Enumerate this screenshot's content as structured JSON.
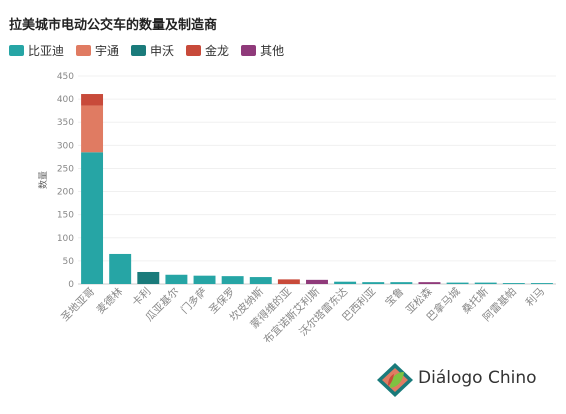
{
  "chart_data": {
    "type": "bar",
    "stacked": true,
    "title": "拉美城市电动公交车的数量及制造商",
    "ylabel": "数量",
    "xlabel": "",
    "ylim": [
      0,
      450
    ],
    "yticks": [
      0,
      50,
      100,
      150,
      200,
      250,
      300,
      350,
      400,
      450
    ],
    "grid": true,
    "legend_position": "top-left",
    "categories": [
      "圣地亚哥",
      "麦德林",
      "卡利",
      "瓜亚基尔",
      "门多萨",
      "圣保罗",
      "坎皮纳斯",
      "蒙得维的亚",
      "布宜诺斯艾利斯",
      "沃尔塔雷东达",
      "巴西利亚",
      "宝鲁",
      "亚松森",
      "巴拿马城",
      "桑托斯",
      "阿雷基帕",
      "利马"
    ],
    "series": [
      {
        "name": "比亚迪",
        "color": "#26a5a5",
        "values": [
          285,
          65,
          0,
          20,
          18,
          17,
          15,
          0,
          0,
          5,
          4,
          4,
          0,
          3,
          3,
          2,
          2
        ]
      },
      {
        "name": "宇通",
        "color": "#e07b62",
        "values": [
          101,
          0,
          0,
          0,
          0,
          0,
          0,
          0,
          0,
          0,
          0,
          0,
          0,
          0,
          0,
          0,
          0
        ]
      },
      {
        "name": "申沃",
        "color": "#1a7b7b",
        "values": [
          0,
          0,
          26,
          0,
          0,
          0,
          0,
          0,
          0,
          0,
          0,
          0,
          0,
          0,
          0,
          0,
          0
        ]
      },
      {
        "name": "金龙",
        "color": "#c84a3a",
        "values": [
          25,
          0,
          0,
          0,
          0,
          0,
          0,
          10,
          0,
          0,
          0,
          0,
          0,
          0,
          0,
          0,
          0
        ]
      },
      {
        "name": "其他",
        "color": "#8f3a7a",
        "values": [
          0,
          0,
          0,
          0,
          0,
          0,
          0,
          0,
          9,
          0,
          0,
          0,
          4,
          0,
          0,
          0,
          0
        ]
      }
    ]
  },
  "logo": {
    "text": "Diálogo Chino"
  }
}
